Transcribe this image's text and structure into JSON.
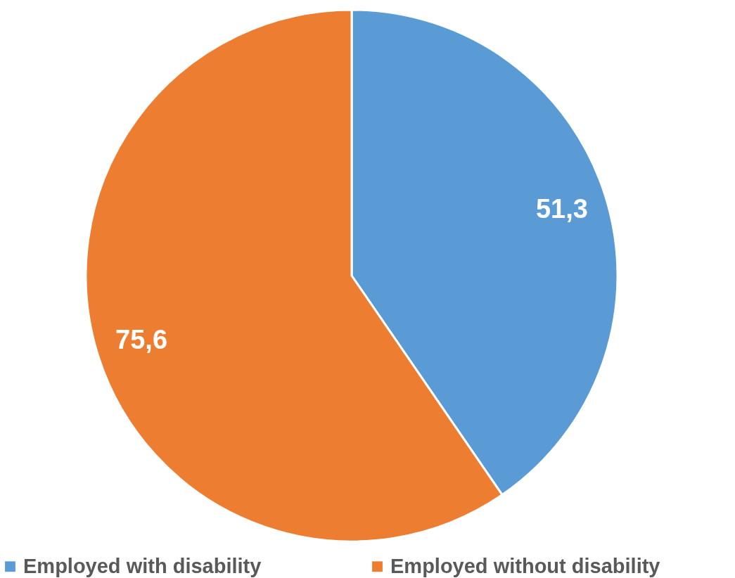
{
  "chart_data": {
    "type": "pie",
    "categories": [
      "Employed with disability",
      "Employed without disability"
    ],
    "values": [
      51.3,
      75.6
    ],
    "colors": [
      "#5b9bd5",
      "#ed7d31"
    ],
    "value_labels": [
      "51,3",
      "75,6"
    ],
    "legend": "bottom"
  }
}
